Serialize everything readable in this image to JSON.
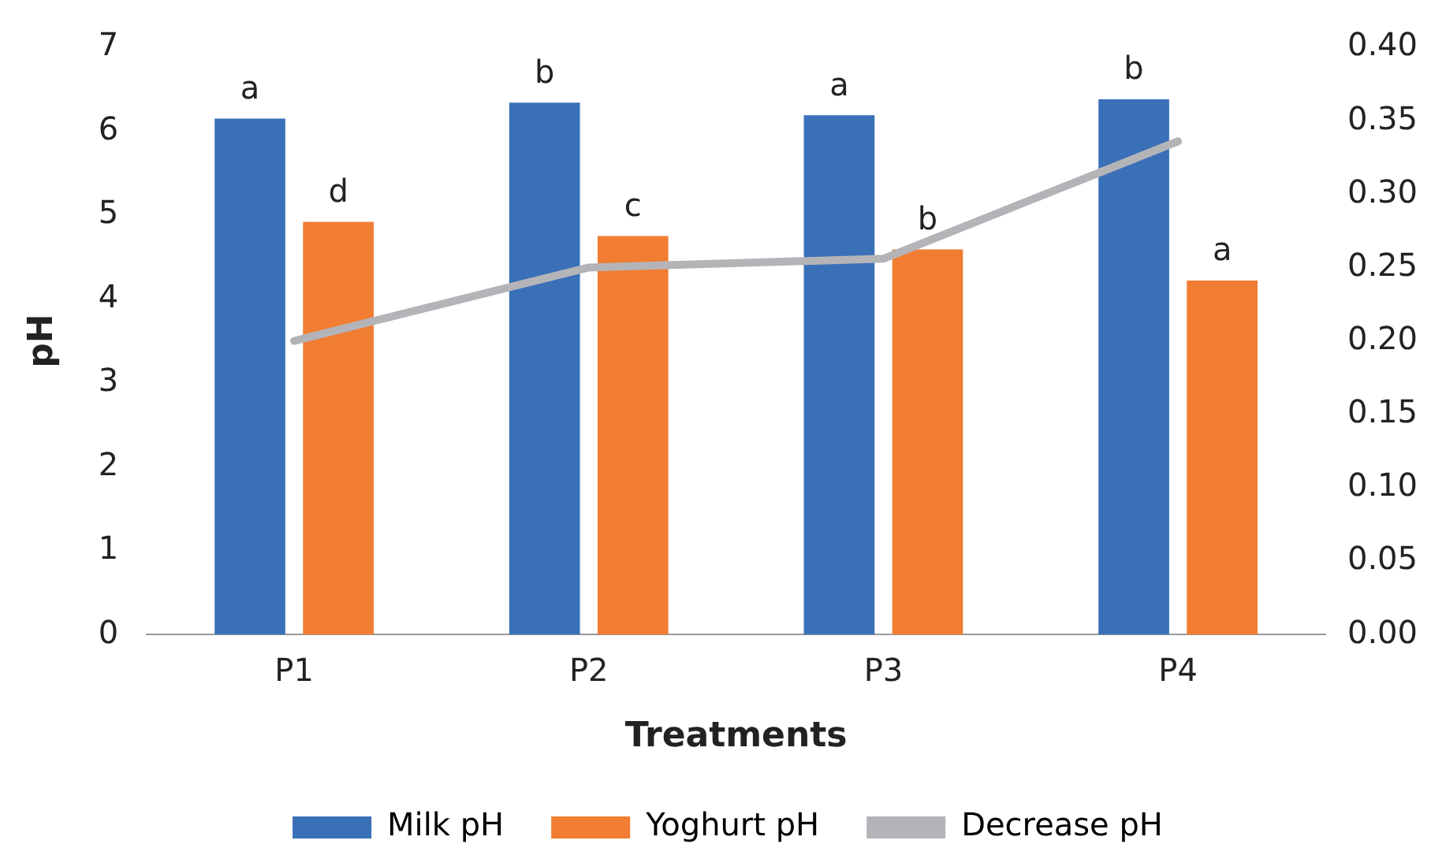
{
  "chart_data": {
    "type": "bar",
    "xlabel": "Treatments",
    "ylabel": "pH",
    "categories": [
      "P1",
      "P2",
      "P3",
      "P4"
    ],
    "series": [
      {
        "name": "Milk pH",
        "color": "#3a70b8",
        "values": [
          6.15,
          6.34,
          6.19,
          6.38
        ],
        "value_labels": [
          "a",
          "b",
          "a",
          "b"
        ]
      },
      {
        "name": "Yoghurt pH",
        "color": "#f07d32",
        "values": [
          4.92,
          4.75,
          4.59,
          4.22
        ],
        "value_labels": [
          "d",
          "c",
          "b",
          "a"
        ]
      },
      {
        "name": "Decrease pH",
        "type": "line",
        "axis": "y2",
        "color": "#b4b4b8",
        "values": [
          0.2,
          0.25,
          0.256,
          0.336
        ]
      }
    ],
    "ylim": [
      0,
      7
    ],
    "yticks": [
      0,
      1,
      2,
      3,
      4,
      5,
      6,
      7
    ],
    "y2lim": [
      0,
      0.4
    ],
    "y2ticks": [
      {
        "value": 0,
        "label": "0.00"
      },
      {
        "value": 0.05,
        "label": "0.05"
      },
      {
        "value": 0.1,
        "label": "0.10"
      },
      {
        "value": 0.15,
        "label": "0.15"
      },
      {
        "value": 0.2,
        "label": "0.20"
      },
      {
        "value": 0.25,
        "label": "0.25"
      },
      {
        "value": 0.3,
        "label": "0.30"
      },
      {
        "value": 0.35,
        "label": "0.35"
      },
      {
        "value": 0.4,
        "label": "0.40"
      }
    ],
    "grid": false,
    "legend": "bottom",
    "marker": "none",
    "line_style": "solid"
  }
}
